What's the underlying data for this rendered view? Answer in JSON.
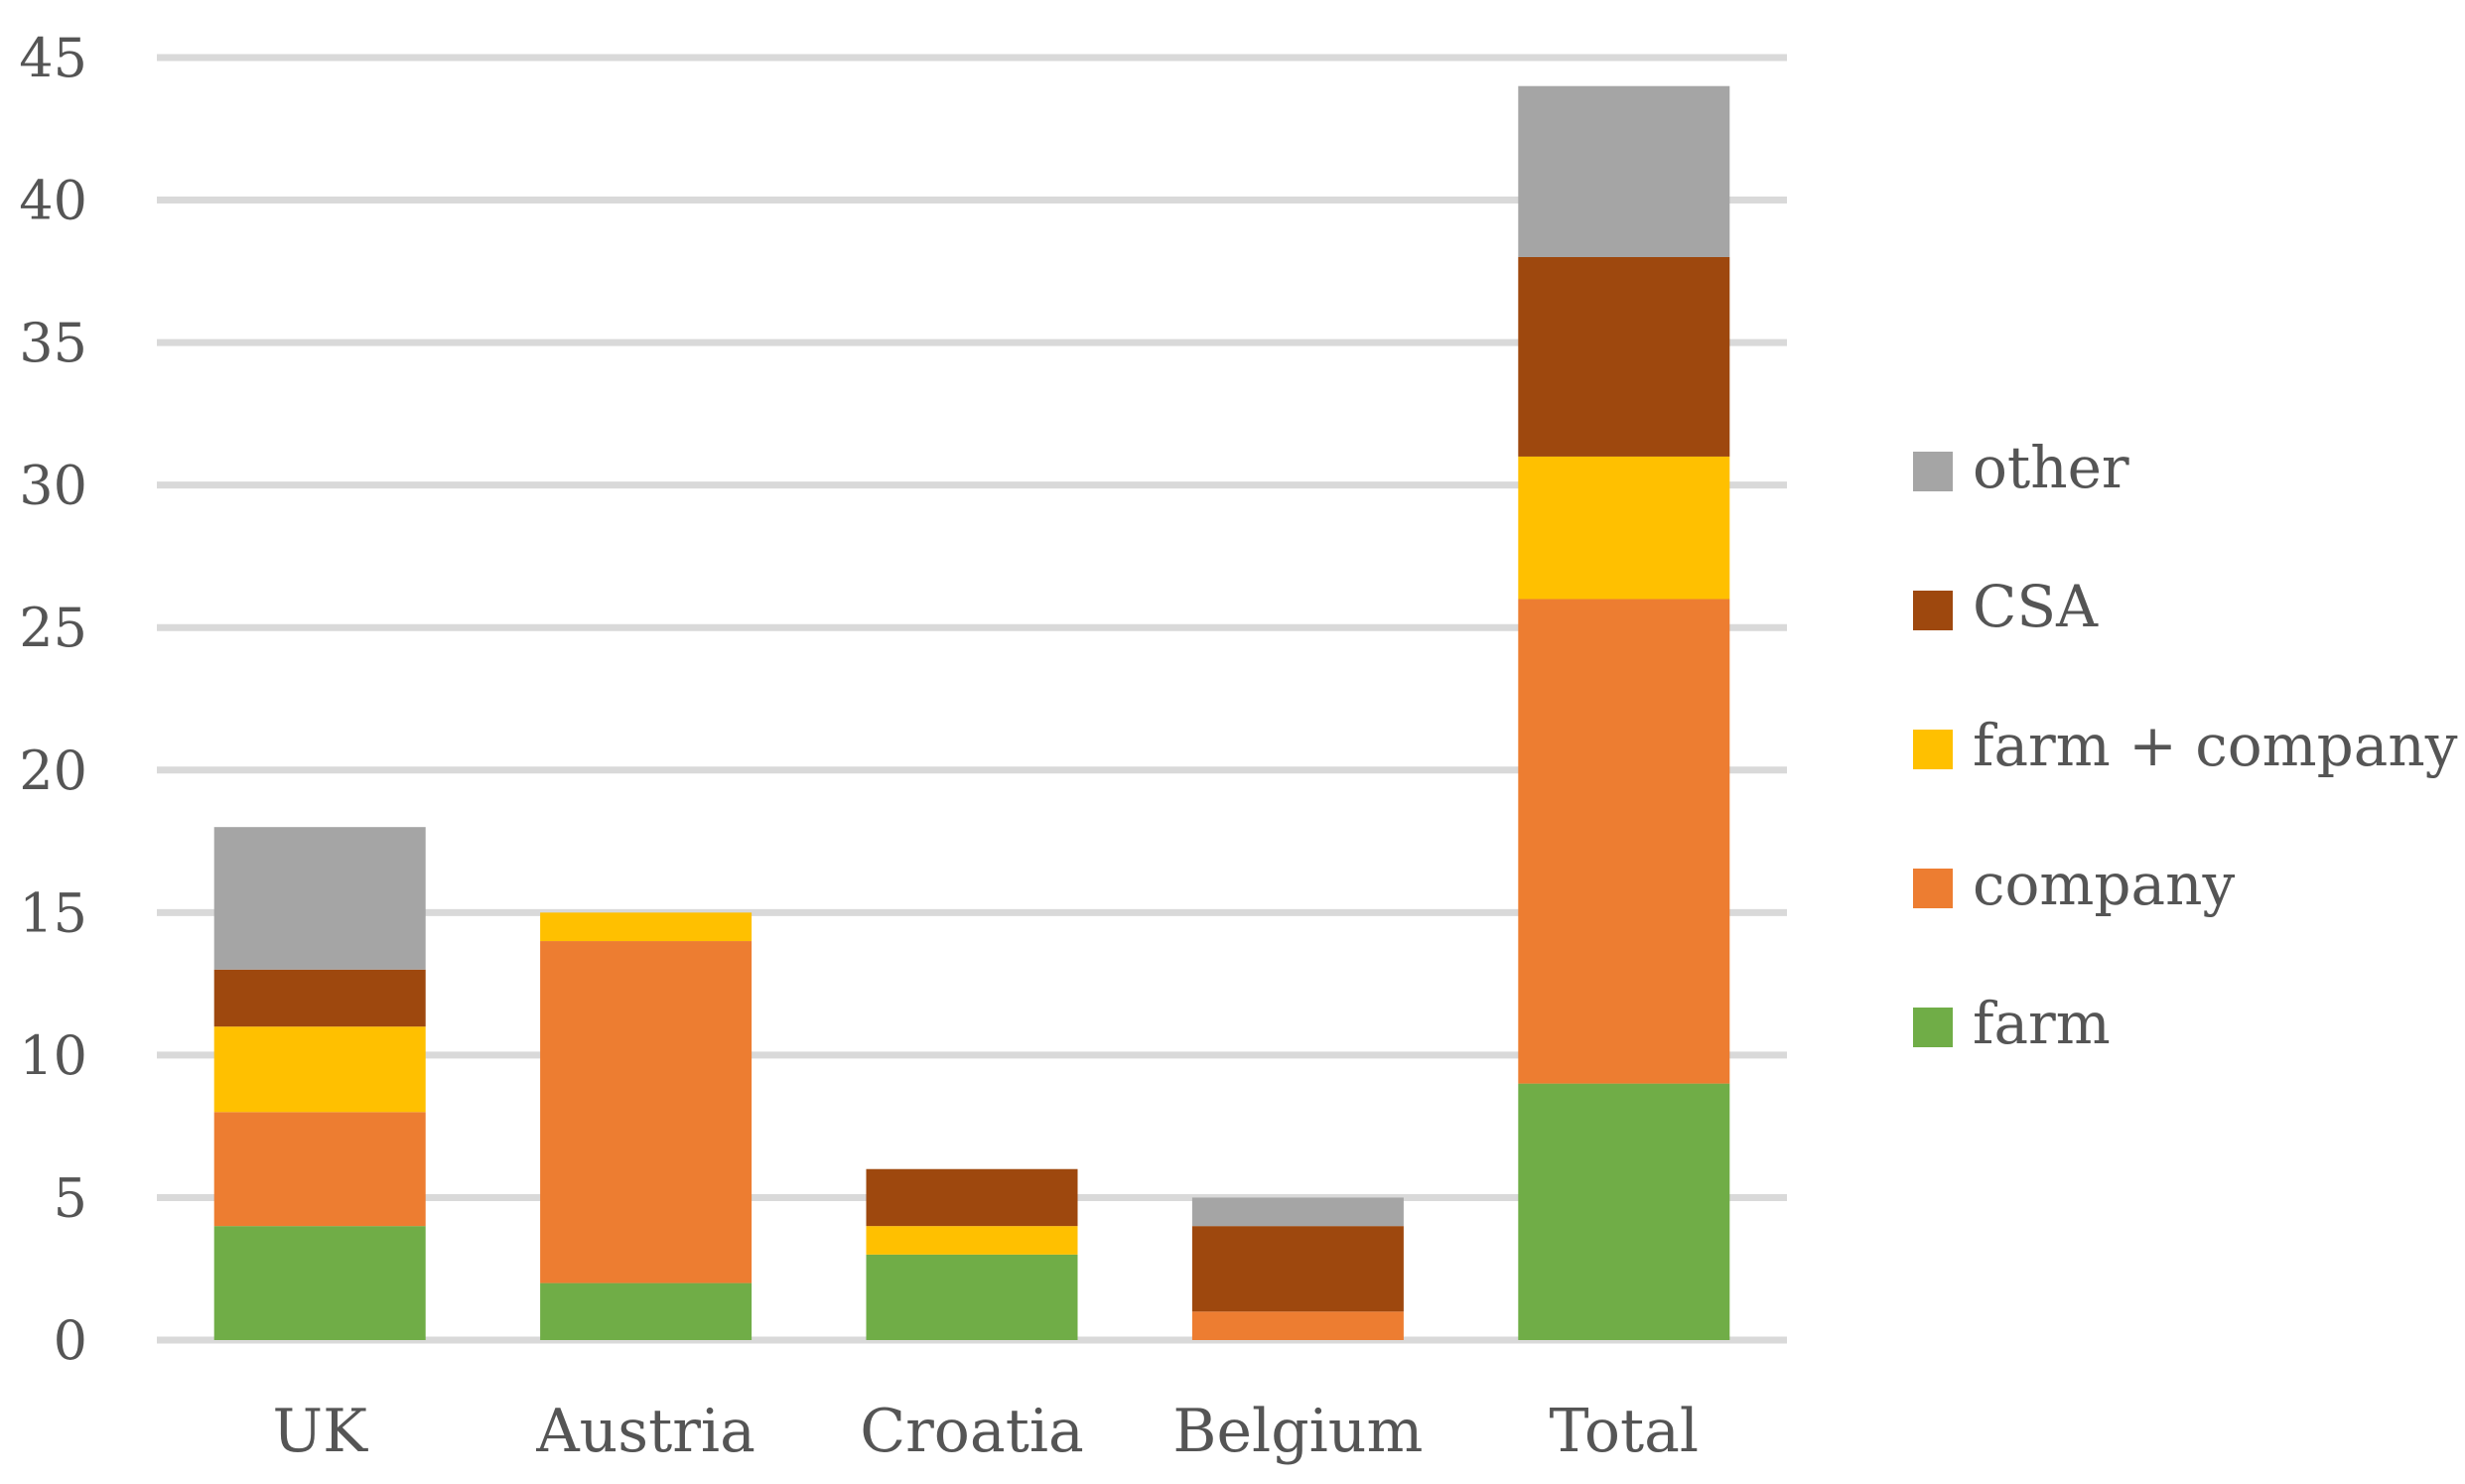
{
  "chart_data": {
    "type": "bar",
    "stacked": true,
    "categories": [
      "UK",
      "Austria",
      "Croatia",
      "Belgium",
      "Total"
    ],
    "series": [
      {
        "name": "farm",
        "color": "#70ad47",
        "values": [
          4,
          2,
          3,
          0,
          9
        ]
      },
      {
        "name": "company",
        "color": "#ed7d31",
        "values": [
          4,
          12,
          0,
          1,
          17
        ]
      },
      {
        "name": "farm + company",
        "color": "#ffc000",
        "values": [
          3,
          1,
          1,
          0,
          5
        ]
      },
      {
        "name": "CSA",
        "color": "#9e480e",
        "values": [
          2,
          0,
          2,
          3,
          7
        ]
      },
      {
        "name": "other",
        "color": "#a5a5a5",
        "values": [
          5,
          0,
          0,
          1,
          6
        ]
      }
    ],
    "title": "",
    "xlabel": "",
    "ylabel": "",
    "ylim": [
      0,
      45
    ],
    "yticks": [
      "0",
      "5",
      "10",
      "15",
      "20",
      "25",
      "30",
      "35",
      "40",
      "45"
    ],
    "grid": true,
    "legend_position": "right",
    "legend_order": [
      "other",
      "CSA",
      "farm + company",
      "company",
      "farm"
    ]
  }
}
